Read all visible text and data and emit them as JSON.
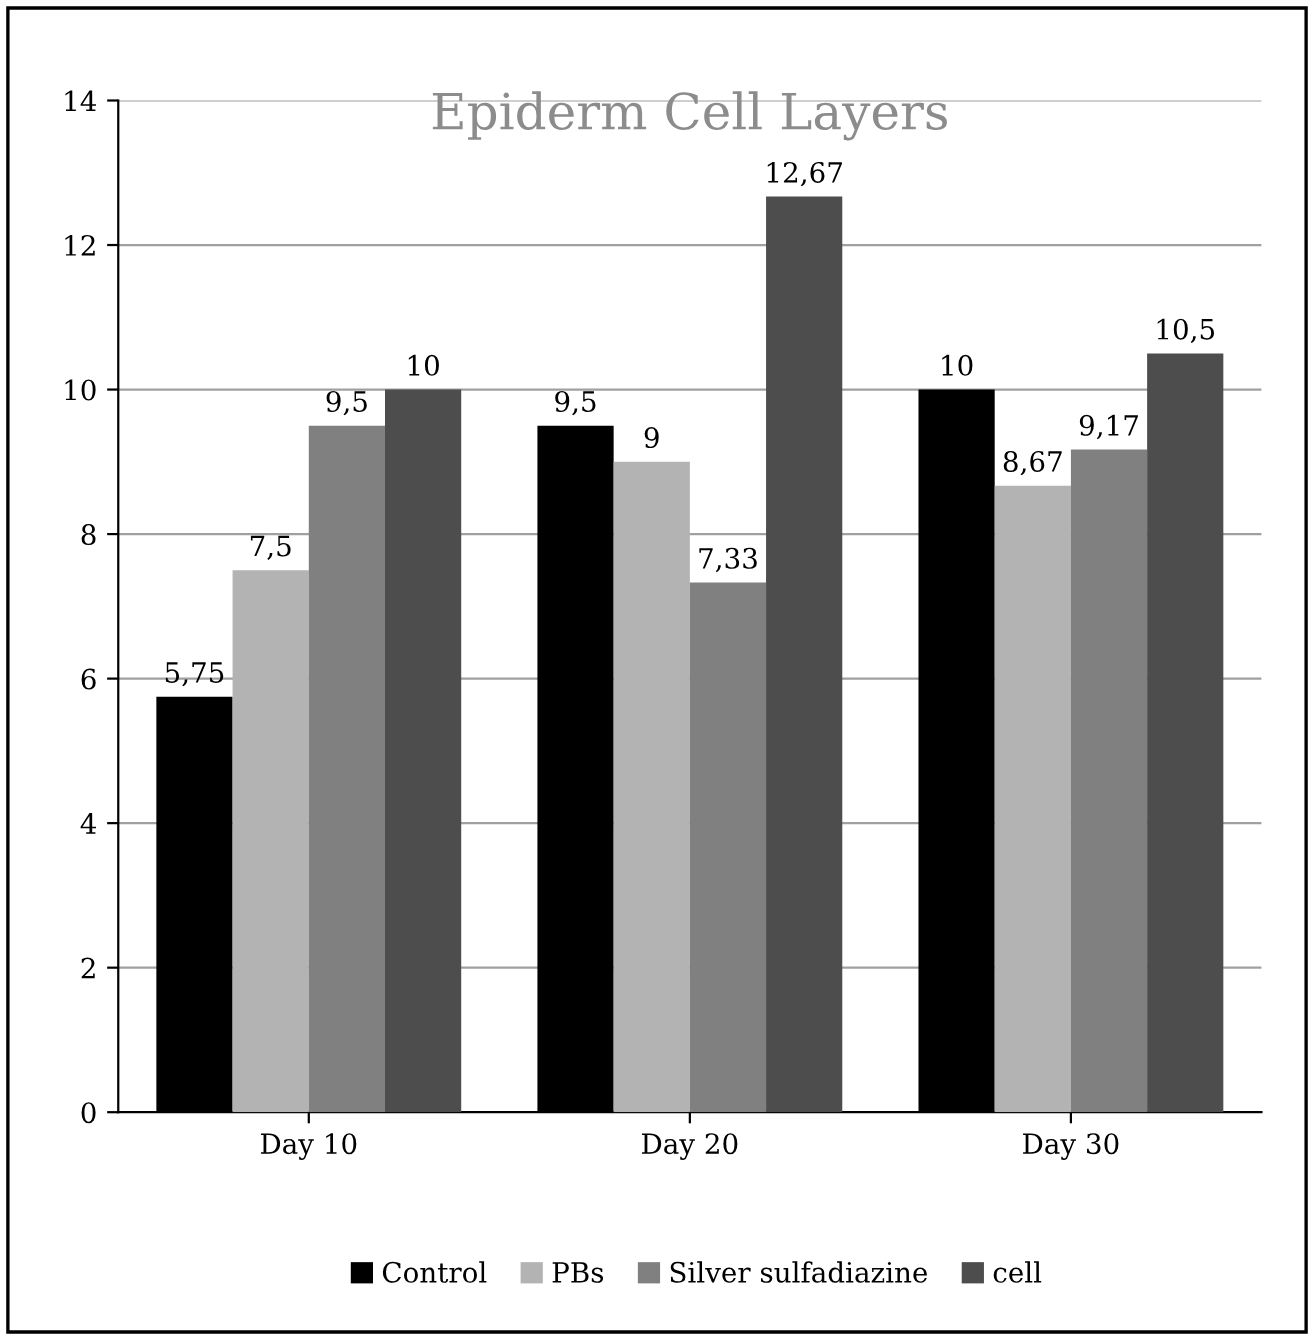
{
  "chart_data": {
    "type": "bar",
    "title": "Epiderm Cell Layers",
    "categories": [
      "Day 10",
      "Day 20",
      "Day 30"
    ],
    "series": [
      {
        "name": "Control",
        "color": "#000000",
        "values": [
          5.75,
          9.5,
          10
        ],
        "value_labels": [
          "5,75",
          "9,5",
          "10"
        ]
      },
      {
        "name": "PBs",
        "color": "#b3b3b3",
        "values": [
          7.5,
          9,
          8.67
        ],
        "value_labels": [
          "7,5",
          "9",
          "8,67"
        ]
      },
      {
        "name": "Silver sulfadiazine",
        "color": "#808080",
        "values": [
          9.5,
          7.33,
          9.17
        ],
        "value_labels": [
          "9,5",
          "7,33",
          "9,17"
        ]
      },
      {
        "name": "cell",
        "color": "#4d4d4d",
        "values": [
          10,
          12.67,
          10.5
        ],
        "value_labels": [
          "10",
          "12,67",
          "10,5"
        ]
      }
    ],
    "ylim": [
      0,
      14
    ],
    "yticks": [
      0,
      2,
      4,
      6,
      8,
      10,
      12,
      14
    ],
    "grid": "y",
    "legend": "bottom"
  }
}
